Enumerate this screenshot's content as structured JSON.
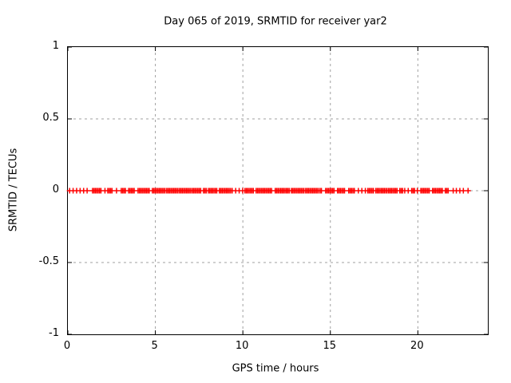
{
  "chart_data": {
    "type": "scatter",
    "title": "Day 065 of 2019, SRMTID for receiver yar2",
    "xlabel": "GPS time / hours",
    "ylabel": "SRMTID / TECUs",
    "xlim": [
      0,
      24
    ],
    "ylim": [
      -1,
      1
    ],
    "xticks": [
      0,
      5,
      10,
      15,
      20
    ],
    "yticks": [
      1,
      0.5,
      0,
      -0.5,
      -1
    ],
    "grid": true,
    "legend_position": "none",
    "series": [
      {
        "name": "SRMTID",
        "marker": "plus",
        "color": "#ff0000",
        "y_value": 0,
        "x_segments": [
          {
            "from": 0.1,
            "to": 1.15,
            "density": "sparse"
          },
          {
            "from": 1.41,
            "to": 1.92,
            "density": "dense"
          },
          {
            "from": 2.12,
            "to": 2.12,
            "density": "single"
          },
          {
            "from": 2.28,
            "to": 2.55,
            "density": "dense"
          },
          {
            "from": 2.78,
            "to": 2.78,
            "density": "single"
          },
          {
            "from": 3.05,
            "to": 3.35,
            "density": "dense"
          },
          {
            "from": 3.47,
            "to": 3.83,
            "density": "dense"
          },
          {
            "from": 4.01,
            "to": 4.65,
            "density": "dense"
          },
          {
            "from": 4.83,
            "to": 5.56,
            "density": "dense"
          },
          {
            "from": 5.65,
            "to": 6.29,
            "density": "dense"
          },
          {
            "from": 6.38,
            "to": 7.02,
            "density": "dense"
          },
          {
            "from": 7.11,
            "to": 7.66,
            "density": "dense"
          },
          {
            "from": 7.75,
            "to": 7.93,
            "density": "dense"
          },
          {
            "from": 8.03,
            "to": 8.57,
            "density": "dense"
          },
          {
            "from": 8.66,
            "to": 9.3,
            "density": "dense"
          },
          {
            "from": 9.39,
            "to": 10.08,
            "density": "sparse"
          },
          {
            "from": 10.12,
            "to": 10.67,
            "density": "dense"
          },
          {
            "from": 10.76,
            "to": 11.67,
            "density": "dense"
          },
          {
            "from": 11.85,
            "to": 12.68,
            "density": "dense"
          },
          {
            "from": 12.77,
            "to": 13.5,
            "density": "dense"
          },
          {
            "from": 13.59,
            "to": 14.32,
            "density": "dense"
          },
          {
            "from": 14.41,
            "to": 14.55,
            "density": "dense"
          },
          {
            "from": 14.73,
            "to": 15.23,
            "density": "dense"
          },
          {
            "from": 15.41,
            "to": 15.87,
            "density": "dense"
          },
          {
            "from": 16.05,
            "to": 16.42,
            "density": "dense"
          },
          {
            "from": 16.6,
            "to": 17.05,
            "density": "sparse"
          },
          {
            "from": 17.14,
            "to": 17.51,
            "density": "dense"
          },
          {
            "from": 17.6,
            "to": 18.24,
            "density": "dense"
          },
          {
            "from": 18.33,
            "to": 18.88,
            "density": "dense"
          },
          {
            "from": 18.97,
            "to": 19.2,
            "density": "dense"
          },
          {
            "from": 19.25,
            "to": 19.61,
            "density": "sparse"
          },
          {
            "from": 19.65,
            "to": 19.88,
            "density": "dense"
          },
          {
            "from": 19.97,
            "to": 20.2,
            "density": "sparse"
          },
          {
            "from": 20.25,
            "to": 20.66,
            "density": "dense"
          },
          {
            "from": 20.84,
            "to": 21.43,
            "density": "dense"
          },
          {
            "from": 21.57,
            "to": 21.75,
            "density": "dense"
          },
          {
            "from": 22.02,
            "to": 22.02,
            "density": "single"
          },
          {
            "from": 22.2,
            "to": 22.66,
            "density": "sparse"
          },
          {
            "from": 22.87,
            "to": 22.87,
            "density": "single"
          }
        ]
      }
    ]
  },
  "colors": {
    "background": "#ffffff",
    "plot_border": "#000000",
    "grid": "#a0a0a0",
    "marker": "#ff0000",
    "text": "#000000"
  }
}
